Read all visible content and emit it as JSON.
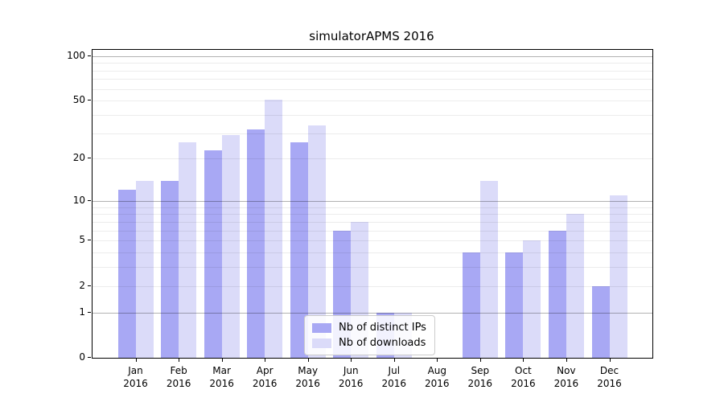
{
  "chart_data": {
    "type": "bar",
    "title": "simulatorAPMS 2016",
    "categories": [
      "Jan",
      "Feb",
      "Mar",
      "Apr",
      "May",
      "Jun",
      "Jul",
      "Aug",
      "Sep",
      "Oct",
      "Nov",
      "Dec"
    ],
    "year": "2016",
    "series": [
      {
        "name": "Nb of distinct IPs",
        "color": "#a8a8f4",
        "values": [
          12,
          14,
          23,
          32,
          26,
          6,
          1,
          0,
          4,
          4,
          6,
          2
        ]
      },
      {
        "name": "Nb of downloads",
        "color": "#dbdbf9",
        "values": [
          14,
          26,
          29,
          51,
          34,
          7,
          1,
          0,
          14,
          5,
          8,
          11
        ]
      }
    ],
    "xlabel": "",
    "ylabel": "",
    "y_ticks": [
      0,
      1,
      2,
      5,
      10,
      20,
      50,
      100
    ],
    "y_scale": "log1p",
    "y_max": 110,
    "grid": "on",
    "grid_major_values": [
      1,
      10,
      100
    ],
    "legend_position": "lower center"
  }
}
